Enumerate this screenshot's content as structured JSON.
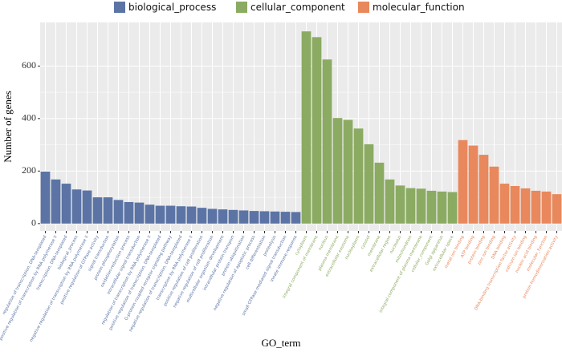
{
  "chart_data": {
    "type": "bar",
    "x_label": "GO_term",
    "y_label": "Number of genes",
    "categories": [
      "regulation of transcription, DNA-templated",
      "positive regulation of transcription by RNA polymerase II",
      "transcription, DNA-templated",
      "biological_process",
      "negative regulation of transcription by RNA polymerase II",
      "positive regulation of GTPase activity",
      "signal transduction",
      "protein phosphorylation",
      "oxidation-reduction process",
      "intracellular signal transduction",
      "regulation of transcription by RNA polymerase II",
      "positive regulation of transcription, DNA-templated",
      "G-protein coupled receptor signaling pathway",
      "negative regulation of transcription, DNA-templated",
      "transcription by RNA polymerase II",
      "positive regulation of cell proliferation",
      "negative regulation of cell proliferation",
      "multicellular organism development",
      "intracellular protein transport",
      "protein ubiquitination",
      "negative regulation of apoptotic process",
      "cell differentiation",
      "proteolysis",
      "small GTPase mediated signal transduction",
      "innate immune response",
      "cytoplasm",
      "integral component of membrane",
      "nucleus",
      "plasma membrane",
      "extracellular exosome",
      "nucleoplasm",
      "cytosol",
      "membrane",
      "extracellular region",
      "nucleolus",
      "mitochondrion",
      "integral component of plasma membrane",
      "cellular_component",
      "Golgi apparatus",
      "extracellular space",
      "metal ion binding",
      "ATP binding",
      "protein binding",
      "zinc ion binding",
      "DNA binding",
      "DNA-binding transcription factor activity",
      "calcium ion binding",
      "nucleic acid binding",
      "molecular_function",
      "protein homodimerization activity"
    ],
    "series": [
      {
        "name": "biological_process",
        "color": "#5b74a5",
        "values": [
          198,
          168,
          152,
          130,
          126,
          100,
          100,
          90,
          82,
          80,
          72,
          68,
          68,
          66,
          65,
          60,
          56,
          54,
          52,
          50,
          48,
          47,
          46,
          45,
          44,
          null,
          null,
          null,
          null,
          null,
          null,
          null,
          null,
          null,
          null,
          null,
          null,
          null,
          null,
          null,
          null,
          null,
          null,
          null,
          null,
          null,
          null,
          null,
          null,
          null
        ]
      },
      {
        "name": "cellular_component",
        "color": "#8bab62",
        "values": [
          null,
          null,
          null,
          null,
          null,
          null,
          null,
          null,
          null,
          null,
          null,
          null,
          null,
          null,
          null,
          null,
          null,
          null,
          null,
          null,
          null,
          null,
          null,
          null,
          null,
          732,
          710,
          625,
          402,
          395,
          362,
          302,
          232,
          168,
          145,
          135,
          133,
          125,
          122,
          120,
          null,
          null,
          null,
          null,
          null,
          null,
          null,
          null,
          null,
          null
        ]
      },
      {
        "name": "molecular_function",
        "color": "#e8885c",
        "values": [
          null,
          null,
          null,
          null,
          null,
          null,
          null,
          null,
          null,
          null,
          null,
          null,
          null,
          null,
          null,
          null,
          null,
          null,
          null,
          null,
          null,
          null,
          null,
          null,
          null,
          null,
          null,
          null,
          null,
          null,
          null,
          null,
          null,
          null,
          null,
          null,
          null,
          null,
          null,
          null,
          318,
          297,
          262,
          217,
          152,
          143,
          134,
          125,
          122,
          112
        ]
      }
    ],
    "ylim": [
      -28,
      766
    ],
    "yticks": [
      0,
      200,
      400,
      600
    ],
    "grid": true,
    "legend": "top"
  }
}
